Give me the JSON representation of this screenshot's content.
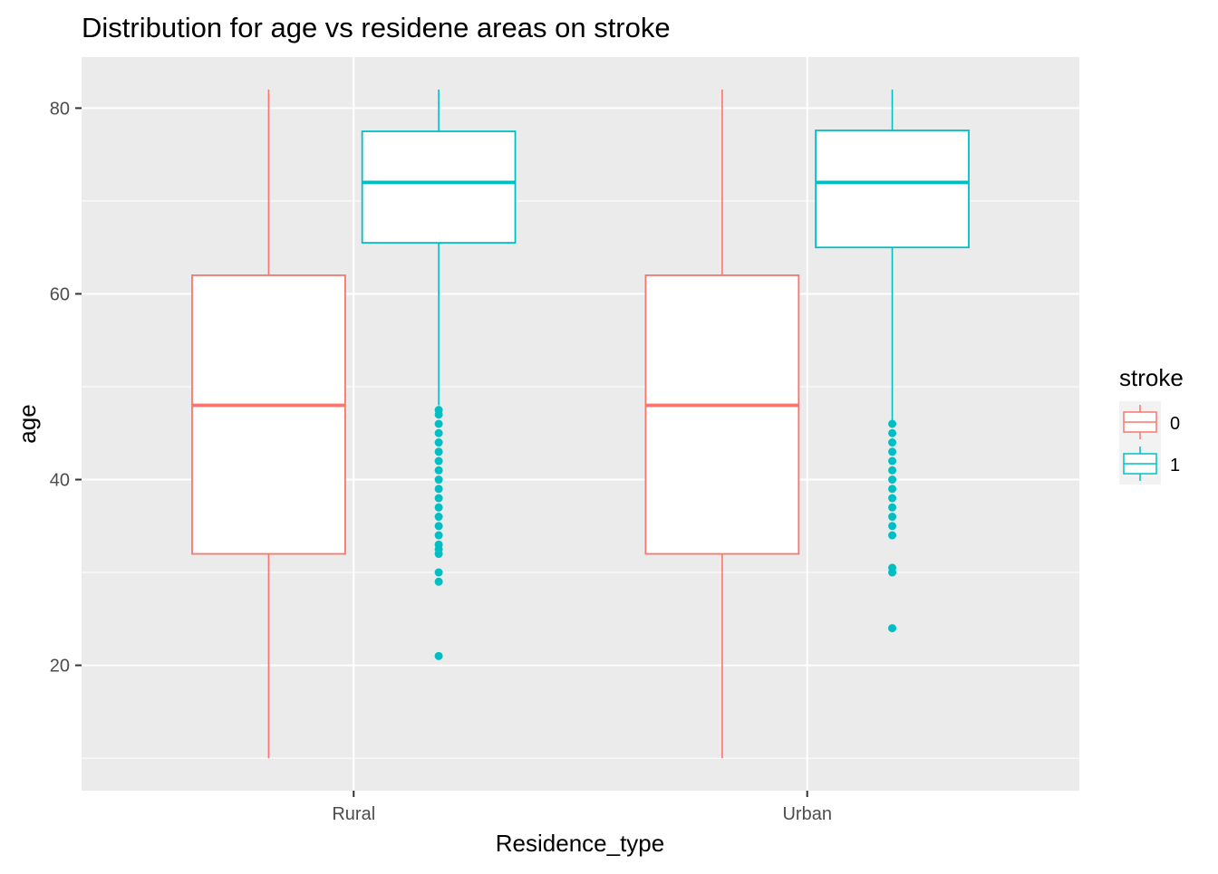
{
  "chart_data": {
    "type": "boxplot",
    "title": "Distribution for age vs residene areas on stroke",
    "xlabel": "Residence_type",
    "ylabel": "age",
    "ylim": [
      6.5,
      85.5
    ],
    "yticks": [
      20,
      40,
      60,
      80
    ],
    "categories": [
      "Rural",
      "Urban"
    ],
    "legend": {
      "title": "stroke",
      "position": "right",
      "entries": [
        {
          "label": "0",
          "color": "#F8766D"
        },
        {
          "label": "1",
          "color": "#00BFC4"
        }
      ]
    },
    "series": [
      {
        "name": "0",
        "color": "#F8766D",
        "boxes": [
          {
            "category": "Rural",
            "min": 10,
            "q1": 32,
            "median": 48,
            "q3": 62,
            "max": 82,
            "outliers": []
          },
          {
            "category": "Urban",
            "min": 10,
            "q1": 32,
            "median": 48,
            "q3": 62,
            "max": 82,
            "outliers": []
          }
        ]
      },
      {
        "name": "1",
        "color": "#00BFC4",
        "boxes": [
          {
            "category": "Rural",
            "min": 48,
            "q1": 65.5,
            "median": 72,
            "q3": 77.5,
            "max": 82,
            "outliers": [
              21,
              29,
              30,
              32,
              32.5,
              33,
              34,
              35,
              36,
              37,
              38,
              39,
              40,
              41,
              42,
              43,
              44,
              45,
              46,
              47,
              47.5
            ]
          },
          {
            "category": "Urban",
            "min": 46,
            "q1": 65,
            "median": 72,
            "q3": 77.6,
            "max": 82,
            "outliers": [
              24,
              30,
              30.5,
              34,
              35,
              36,
              37,
              38,
              39,
              40,
              41,
              42,
              43,
              44,
              45,
              46
            ]
          }
        ]
      }
    ]
  }
}
